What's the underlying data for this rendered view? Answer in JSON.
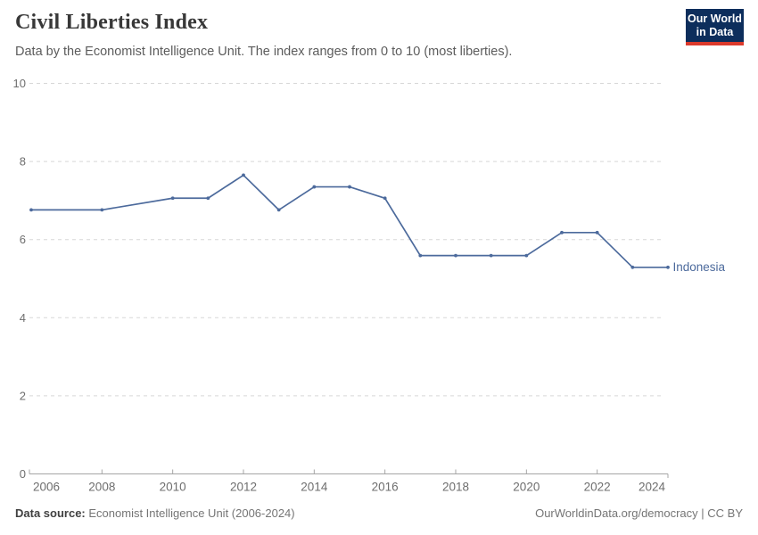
{
  "header": {
    "logo": {
      "line1": "Our World",
      "line2": "in Data",
      "bg_color": "#0d2e5c",
      "bar_color": "#dc3a2c"
    }
  },
  "chart_data": {
    "type": "line",
    "title": "Civil Liberties Index",
    "subtitle": "Data by the Economist Intelligence Unit. The index ranges from 0 to 10 (most liberties).",
    "xlabel": "",
    "ylabel": "",
    "xlim": [
      2006,
      2024
    ],
    "ylim": [
      0,
      10
    ],
    "x_ticks": [
      2006,
      2008,
      2010,
      2012,
      2014,
      2016,
      2018,
      2020,
      2022,
      2024
    ],
    "y_ticks": [
      0,
      2,
      4,
      6,
      8,
      10
    ],
    "grid": "horizontal-dashed",
    "legend_position": "label-at-line-end",
    "style": {
      "grid_color": "#d7d7d7",
      "axis_color": "#a5a5a5",
      "tick_label_color": "#6e6e6e"
    },
    "series": [
      {
        "name": "Indonesia",
        "color": "#4C6A9C",
        "points": [
          [
            2006,
            6.76
          ],
          [
            2008,
            6.76
          ],
          [
            2010,
            7.06
          ],
          [
            2011,
            7.06
          ],
          [
            2012,
            7.65
          ],
          [
            2013,
            6.76
          ],
          [
            2014,
            7.35
          ],
          [
            2015,
            7.35
          ],
          [
            2016,
            7.06
          ],
          [
            2017,
            5.59
          ],
          [
            2018,
            5.59
          ],
          [
            2019,
            5.59
          ],
          [
            2020,
            5.59
          ],
          [
            2021,
            6.18
          ],
          [
            2022,
            6.18
          ],
          [
            2023,
            5.29
          ],
          [
            2024,
            5.29
          ]
        ]
      }
    ]
  },
  "footer": {
    "source_label": "Data source:",
    "source_value": "Economist Intelligence Unit (2006-2024)",
    "attribution_link": "OurWorldinData.org/democracy",
    "attribution_suffix": " | CC BY"
  }
}
